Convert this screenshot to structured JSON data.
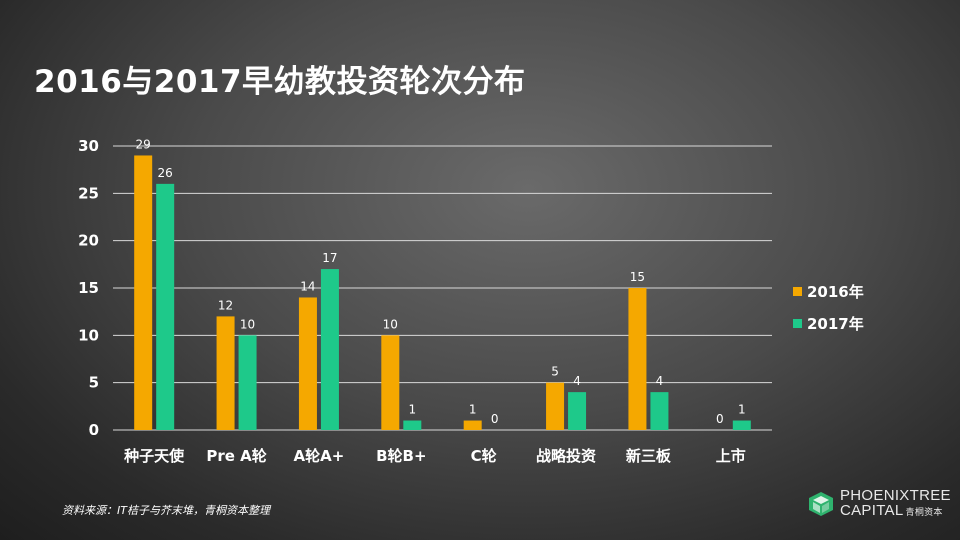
{
  "title": "2016与2017早幼教投资轮次分布",
  "source": "资料来源：IT桔子与芥末堆，青桐资本整理",
  "brand": {
    "line1": "PHOENIXTREE",
    "line2": "CAPITAL",
    "cn": "青桐资本",
    "colors": {
      "logo": "#2fb36e"
    }
  },
  "chart_data": {
    "type": "bar",
    "categories": [
      "种子天使",
      "Pre A轮",
      "A轮A+",
      "B轮B+",
      "C轮",
      "战略投资",
      "新三板",
      "上市"
    ],
    "series": [
      {
        "name": "2016年",
        "values": [
          29,
          12,
          14,
          10,
          1,
          5,
          15,
          0
        ],
        "color": "#f5a800"
      },
      {
        "name": "2017年",
        "values": [
          26,
          10,
          17,
          1,
          0,
          4,
          4,
          1
        ],
        "color": "#1ec98a"
      }
    ],
    "ylim": [
      0,
      30
    ],
    "yticks": [
      0,
      5,
      10,
      15,
      20,
      25,
      30
    ],
    "grid": true,
    "legend": "right"
  }
}
